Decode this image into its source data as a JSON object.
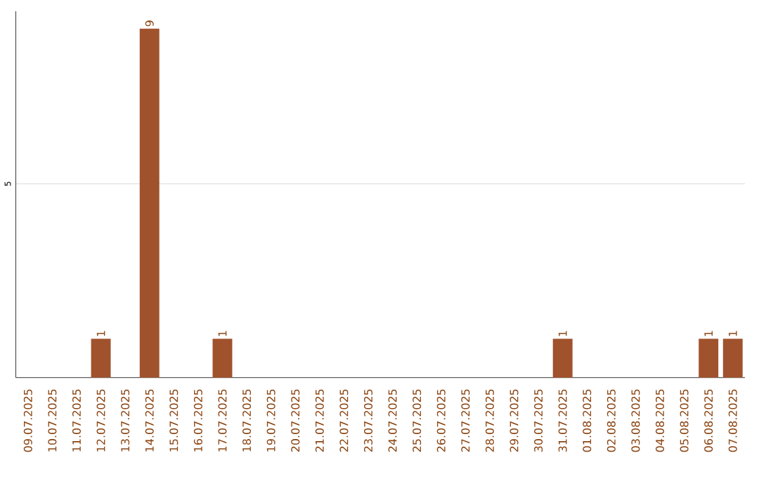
{
  "chart_data": {
    "type": "bar",
    "categories": [
      "09.07.2025",
      "10.07.2025",
      "11.07.2025",
      "12.07.2025",
      "13.07.2025",
      "14.07.2025",
      "15.07.2025",
      "16.07.2025",
      "17.07.2025",
      "18.07.2025",
      "19.07.2025",
      "20.07.2025",
      "21.07.2025",
      "22.07.2025",
      "23.07.2025",
      "24.07.2025",
      "25.07.2025",
      "26.07.2025",
      "27.07.2025",
      "28.07.2025",
      "29.07.2025",
      "30.07.2025",
      "31.07.2025",
      "01.08.2025",
      "02.08.2025",
      "03.08.2025",
      "04.08.2025",
      "05.08.2025",
      "06.08.2025",
      "07.08.2025"
    ],
    "values": [
      0,
      0,
      0,
      1,
      0,
      9,
      0,
      0,
      1,
      0,
      0,
      0,
      0,
      0,
      0,
      0,
      0,
      0,
      0,
      0,
      0,
      0,
      1,
      0,
      0,
      0,
      0,
      0,
      1,
      1
    ],
    "value_labels": [
      null,
      null,
      null,
      "1",
      null,
      "9",
      null,
      null,
      "1",
      null,
      null,
      null,
      null,
      null,
      null,
      null,
      null,
      null,
      null,
      null,
      null,
      null,
      "1",
      null,
      null,
      null,
      null,
      null,
      "1",
      "1"
    ],
    "color": "#a0522d",
    "ylim": [
      0,
      9.45
    ],
    "yticks": [
      5
    ],
    "grid": "y"
  }
}
